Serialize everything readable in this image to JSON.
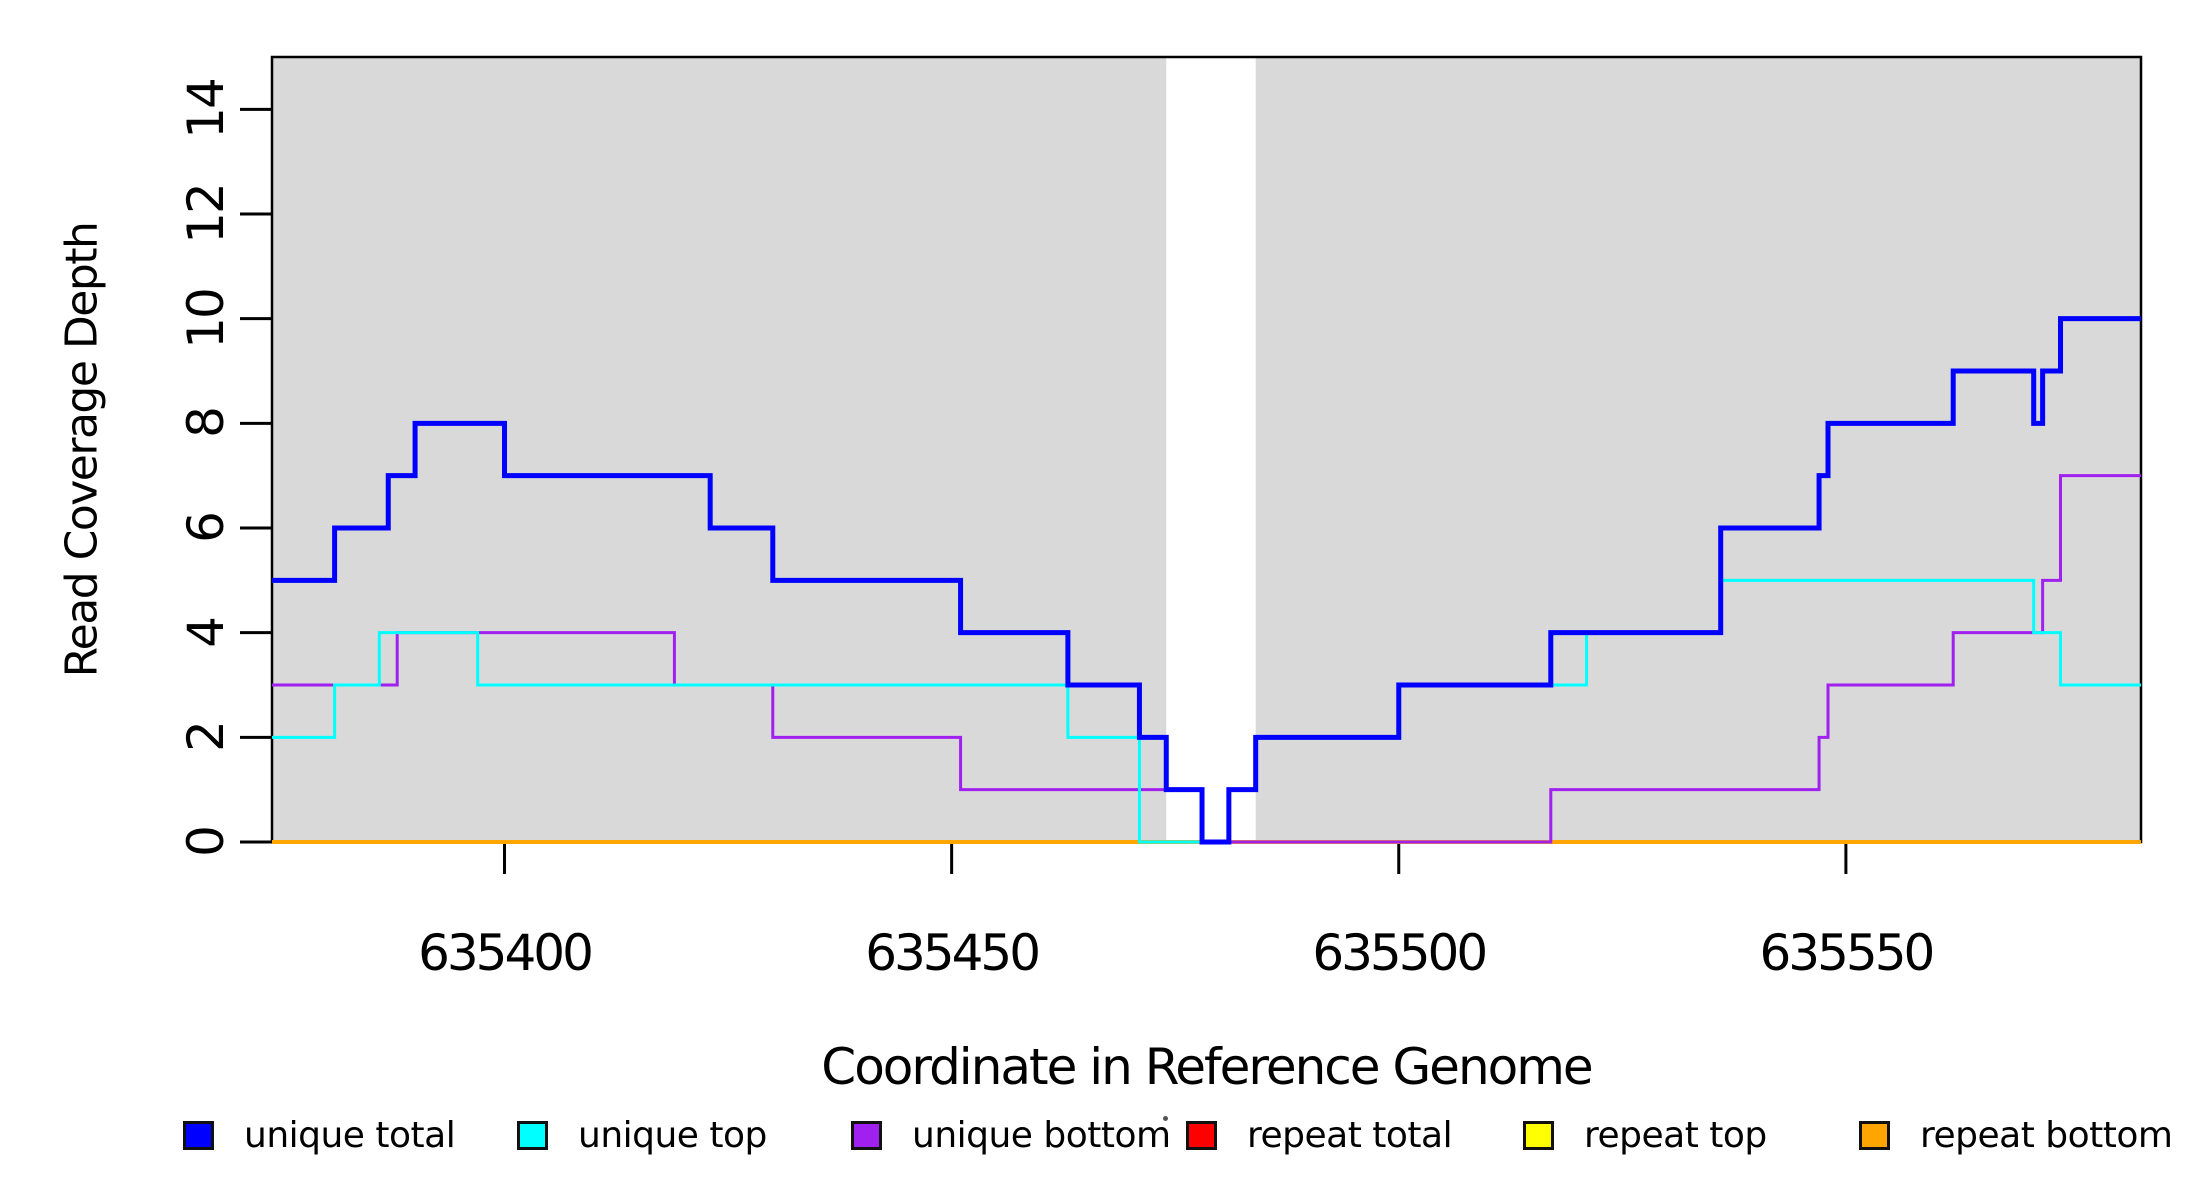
{
  "figure": {
    "x_axis": {
      "label": "Coordinate in Reference Genome",
      "tick_values": [
        635400,
        635450,
        635500,
        635550
      ],
      "tick_labels": [
        "635400",
        "635450",
        "635500",
        "635550"
      ]
    },
    "y_axis": {
      "label": "Read Coverage Depth",
      "tick_values": [
        0,
        2,
        4,
        6,
        8,
        10,
        12,
        14
      ],
      "tick_labels": [
        "0",
        "2",
        "4",
        "6",
        "8",
        "10",
        "12",
        "14"
      ]
    },
    "colors": {
      "panel_shade": "#D9D9D9",
      "background": "#FFFFFF",
      "axis": "#000000"
    },
    "shaded_regions": [
      [
        635374,
        635474
      ],
      [
        635484,
        635583
      ]
    ]
  },
  "legend": {
    "items": [
      {
        "label": "unique total",
        "color": "#0000FF"
      },
      {
        "label": "unique top",
        "color": "#00FFFF"
      },
      {
        "label": "unique bottom",
        "color": "#A020F0"
      },
      {
        "label": "repeat total",
        "color": "#FF0000"
      },
      {
        "label": "repeat top",
        "color": "#FFFF00"
      },
      {
        "label": "repeat bottom",
        "color": "#FFA500"
      }
    ]
  },
  "chart_data": {
    "type": "line",
    "step": "post",
    "title": "",
    "xlabel": "Coordinate in Reference Genome",
    "ylabel": "Read Coverage Depth",
    "xlim": [
      635374,
      635583
    ],
    "ylim": [
      0,
      15
    ],
    "grid": false,
    "legend_position": "bottom",
    "series": [
      {
        "name": "repeat total",
        "color": "#FF0000",
        "width": 3,
        "points": [
          [
            635374,
            0
          ]
        ]
      },
      {
        "name": "repeat top",
        "color": "#FFFF00",
        "width": 3,
        "points": [
          [
            635374,
            0
          ]
        ]
      },
      {
        "name": "repeat bottom",
        "color": "#FFA500",
        "width": 4,
        "points": [
          [
            635374,
            0
          ]
        ]
      },
      {
        "name": "unique bottom",
        "color": "#A020F0",
        "width": 3,
        "points": [
          [
            635374,
            3
          ],
          [
            635388,
            4
          ],
          [
            635419,
            3
          ],
          [
            635430,
            2
          ],
          [
            635451,
            1
          ],
          [
            635478,
            0
          ],
          [
            635517,
            1
          ],
          [
            635547,
            2
          ],
          [
            635548,
            3
          ],
          [
            635562,
            4
          ],
          [
            635572,
            5
          ],
          [
            635574,
            7
          ]
        ]
      },
      {
        "name": "unique top",
        "color": "#00FFFF",
        "width": 3,
        "points": [
          [
            635374,
            2
          ],
          [
            635381,
            3
          ],
          [
            635386,
            4
          ],
          [
            635397,
            3
          ],
          [
            635463,
            2
          ],
          [
            635471,
            0
          ],
          [
            635481,
            1
          ],
          [
            635484,
            2
          ],
          [
            635500,
            3
          ],
          [
            635521,
            4
          ],
          [
            635536,
            5
          ],
          [
            635571,
            4
          ],
          [
            635574,
            3
          ]
        ]
      },
      {
        "name": "unique total",
        "color": "#0000FF",
        "width": 5,
        "points": [
          [
            635374,
            5
          ],
          [
            635381,
            6
          ],
          [
            635387,
            7
          ],
          [
            635390,
            8
          ],
          [
            635400,
            7
          ],
          [
            635423,
            6
          ],
          [
            635430,
            5
          ],
          [
            635451,
            4
          ],
          [
            635463,
            3
          ],
          [
            635471,
            2
          ],
          [
            635474,
            1
          ],
          [
            635478,
            0
          ],
          [
            635481,
            1
          ],
          [
            635484,
            2
          ],
          [
            635500,
            3
          ],
          [
            635517,
            4
          ],
          [
            635536,
            6
          ],
          [
            635547,
            7
          ],
          [
            635548,
            8
          ],
          [
            635562,
            9
          ],
          [
            635571,
            8
          ],
          [
            635572,
            9
          ],
          [
            635574,
            10
          ]
        ]
      }
    ]
  }
}
